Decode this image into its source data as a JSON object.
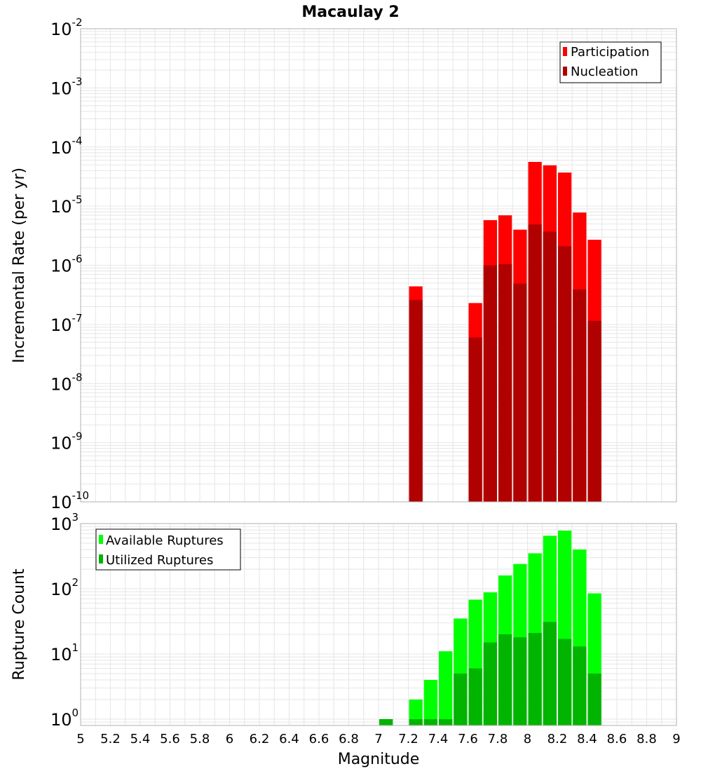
{
  "figure_title": "Macaulay 2",
  "x_ticks": [
    "5",
    "5.2",
    "5.4",
    "5.6",
    "5.8",
    "6",
    "6.2",
    "6.4",
    "6.6",
    "6.8",
    "7",
    "7.2",
    "7.4",
    "7.6",
    "7.8",
    "8",
    "8.2",
    "8.4",
    "8.6",
    "8.8",
    "9"
  ],
  "colors": {
    "participation": "#ff0000",
    "nucleation": "#b00000",
    "available": "#00ff00",
    "utilized": "#00b400",
    "grid": "#e6e6e6",
    "axis": "#b0b0b0"
  },
  "chart_data": [
    {
      "type": "bar",
      "title": "Macaulay 2",
      "xlabel": "Magnitude",
      "ylabel": "Incremental Rate (per yr)",
      "yscale": "log",
      "xlim": [
        5,
        9
      ],
      "ylim": [
        1e-10,
        0.01
      ],
      "ytick_exponents": [
        "-10",
        "-9",
        "-8",
        "-7",
        "-6",
        "-5",
        "-4",
        "-3",
        "-2"
      ],
      "grid": true,
      "legend_position": "top-right",
      "bar_width": 0.1,
      "x": [
        7.25,
        7.65,
        7.75,
        7.85,
        7.95,
        8.05,
        8.15,
        8.25,
        8.35,
        8.45
      ],
      "series": [
        {
          "name": "Participation",
          "values": [
            4.4e-07,
            2.3e-07,
            5.8e-06,
            7e-06,
            4e-06,
            5.6e-05,
            4.9e-05,
            3.7e-05,
            7.8e-06,
            2.7e-06
          ]
        },
        {
          "name": "Nucleation",
          "values": [
            2.6e-07,
            6e-08,
            1e-06,
            1.05e-06,
            4.9e-07,
            4.9e-06,
            3.7e-06,
            2.1e-06,
            3.9e-07,
            1.15e-07
          ]
        }
      ]
    },
    {
      "type": "bar",
      "title": "",
      "xlabel": "Magnitude",
      "ylabel": "Rupture Count",
      "yscale": "log",
      "xlim": [
        5,
        9
      ],
      "ylim": [
        0.8,
        1000
      ],
      "ytick_exponents": [
        "0",
        "1",
        "2",
        "3"
      ],
      "grid": true,
      "legend_position": "top-left",
      "bar_width": 0.1,
      "x": [
        7.05,
        7.25,
        7.35,
        7.45,
        7.55,
        7.65,
        7.75,
        7.85,
        7.95,
        8.05,
        8.15,
        8.25,
        8.35,
        8.45
      ],
      "series": [
        {
          "name": "Available Ruptures",
          "values": [
            1,
            2,
            4,
            11,
            35,
            68,
            88,
            160,
            240,
            350,
            650,
            780,
            400,
            85
          ]
        },
        {
          "name": "Utilized Ruptures",
          "values": [
            1,
            1,
            1,
            1,
            5,
            6,
            15,
            20,
            18,
            21,
            31,
            17,
            13,
            5
          ]
        }
      ]
    }
  ]
}
